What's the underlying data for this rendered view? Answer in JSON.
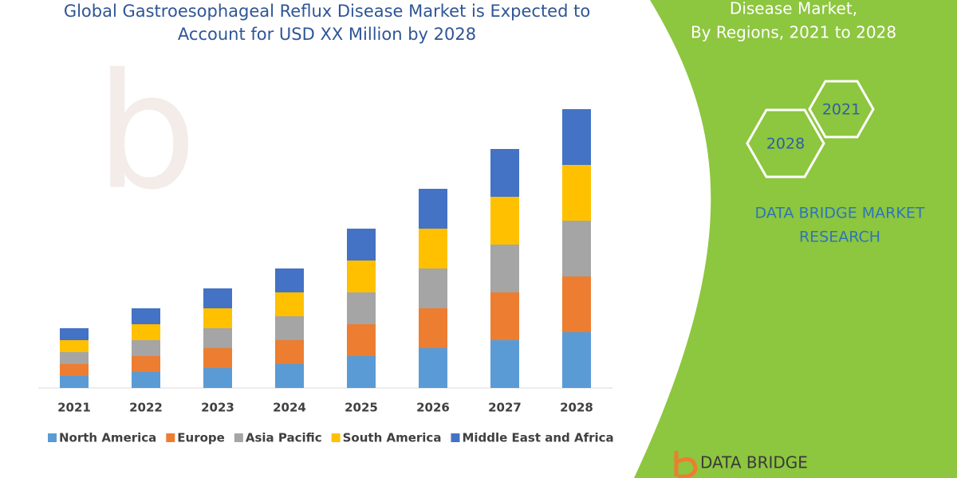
{
  "chart_data": {
    "type": "stacked-bar",
    "title": "Global Gastroesophageal Reflux Disease Market is Expected to Account for USD XX Million by 2028",
    "categories": [
      "2021",
      "2022",
      "2023",
      "2024",
      "2025",
      "2026",
      "2027",
      "2028"
    ],
    "series": [
      {
        "name": "North America",
        "color": "#5b9bd5",
        "values": [
          15,
          20,
          25,
          30,
          40,
          50,
          60,
          70
        ]
      },
      {
        "name": "Europe",
        "color": "#ed7d31",
        "values": [
          15,
          20,
          25,
          30,
          40,
          50,
          60,
          70
        ]
      },
      {
        "name": "Asia Pacific",
        "color": "#a5a5a5",
        "values": [
          15,
          20,
          25,
          30,
          40,
          50,
          60,
          70
        ]
      },
      {
        "name": "South America",
        "color": "#ffc000",
        "values": [
          15,
          20,
          25,
          30,
          40,
          50,
          60,
          70
        ]
      },
      {
        "name": "Middle East and Africa",
        "color": "#4472c4",
        "values": [
          15,
          20,
          25,
          30,
          40,
          50,
          60,
          70
        ]
      }
    ],
    "legend": "bottom"
  },
  "panel": {
    "heading": [
      "Disease Market,",
      "By Regions, 2021 to 2028"
    ],
    "badges": [
      "2021",
      "2028"
    ],
    "brand": [
      "DATA BRIDGE MARKET",
      "RESEARCH"
    ],
    "logo": "DATA BRIDGE"
  }
}
